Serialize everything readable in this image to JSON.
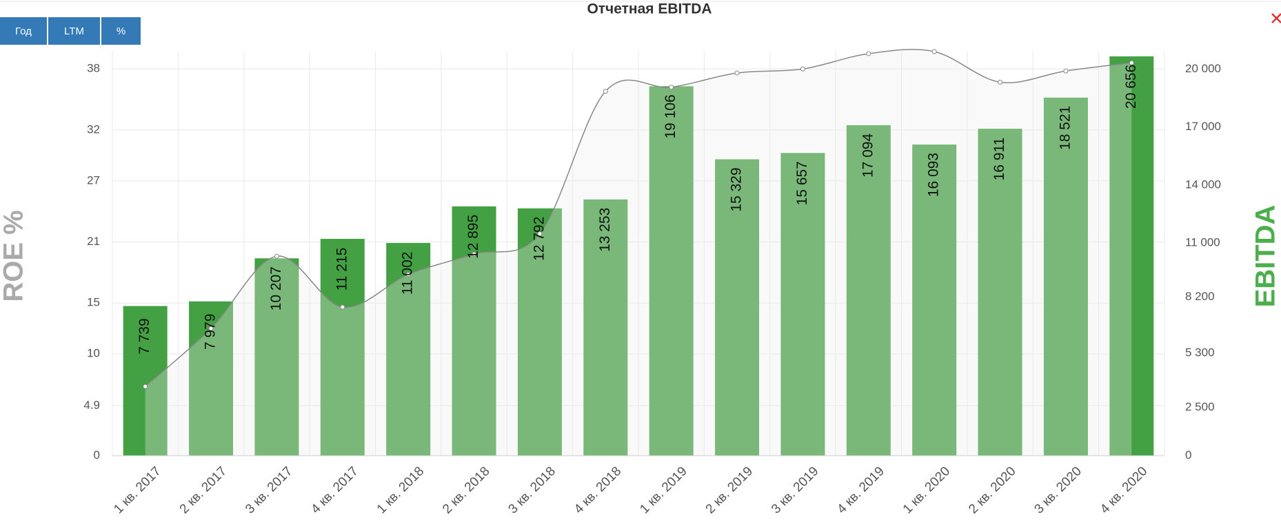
{
  "buttons": [
    "Год",
    "LTM",
    "%"
  ],
  "chart_data": {
    "type": "combo",
    "title": "Отчетная EBITDA",
    "ylabel": "ROE %",
    "y2label": "EBITDA",
    "categories": [
      "1 кв. 2017",
      "2 кв. 2017",
      "3 кв. 2017",
      "4 кв. 2017",
      "1 кв. 2018",
      "2 кв. 2018",
      "3 кв. 2018",
      "4 кв. 2018",
      "1 кв. 2019",
      "2 кв. 2019",
      "3 кв. 2019",
      "4 кв. 2019",
      "1 кв. 2020",
      "2 кв. 2020",
      "3 кв. 2020",
      "4 кв. 2020"
    ],
    "series": [
      {
        "type": "bar",
        "axis": "y2",
        "color": "#43a043",
        "values": [
          7739,
          7979,
          10207,
          11215,
          11002,
          12895,
          12792,
          13253,
          19106,
          15329,
          15657,
          17094,
          16093,
          16911,
          18521,
          20656
        ],
        "value_labels": [
          "7 739",
          "7 979",
          "10 207",
          "11 215",
          "11 002",
          "12 895",
          "12 792",
          "13 253",
          "19 106",
          "15 329",
          "15 657",
          "17 094",
          "16 093",
          "16 911",
          "18 521",
          "20 656"
        ]
      },
      {
        "type": "area",
        "axis": "y",
        "color": "#888888",
        "values": [
          6.8,
          12.5,
          19.6,
          14.6,
          17.8,
          19.8,
          21.8,
          35.8,
          36.2,
          37.6,
          38.0,
          39.5,
          39.7,
          36.7,
          37.8,
          38.6
        ]
      }
    ],
    "ylim": [
      0,
      39.7
    ],
    "yticks": [
      0,
      4.9,
      10,
      15,
      21,
      27,
      32,
      38
    ],
    "y2lim": [
      0,
      20900
    ],
    "y2ticks": [
      0,
      {
        "value": 2500,
        "label": "2 500"
      },
      {
        "value": 5300,
        "label": "5 300"
      },
      {
        "value": 8200,
        "label": "8 200"
      },
      {
        "value": 11000,
        "label": "11 000"
      },
      {
        "value": 14000,
        "label": "14 000"
      },
      {
        "value": 17000,
        "label": "17 000"
      },
      {
        "value": 20000,
        "label": "20 000"
      }
    ],
    "grid": true
  }
}
